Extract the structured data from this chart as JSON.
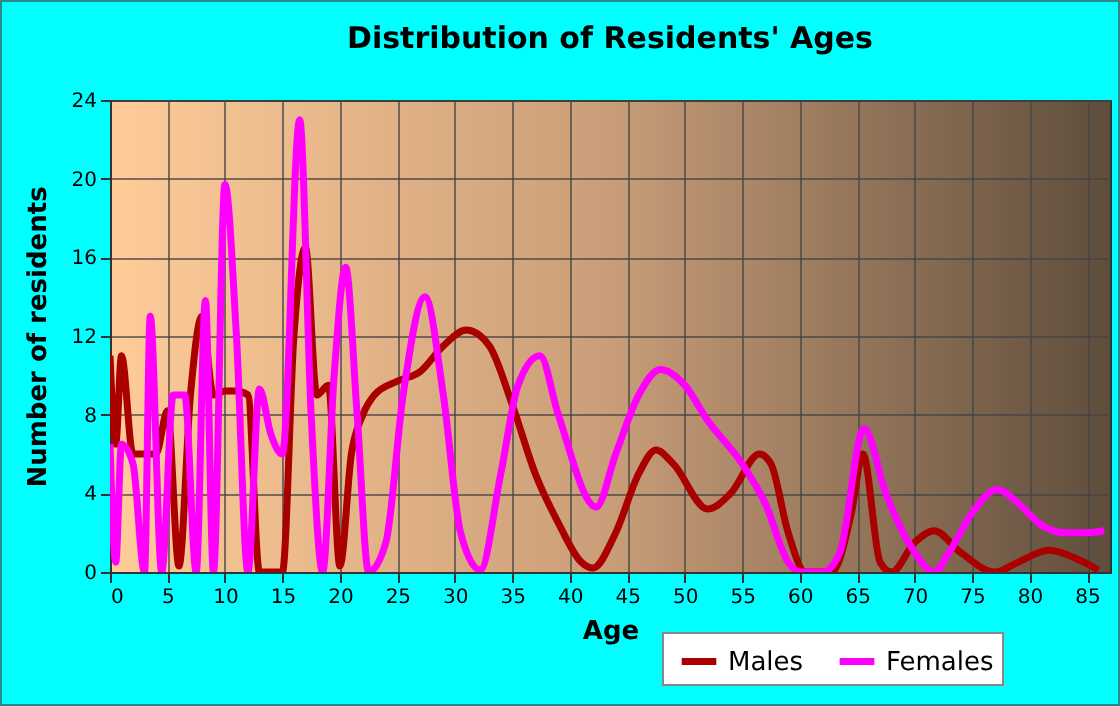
{
  "chart_data": {
    "type": "line",
    "title": "Distribution of Residents' Ages",
    "xlabel": "Age",
    "ylabel": "Number of residents",
    "xlim": [
      0,
      87
    ],
    "xticks": [
      0,
      5,
      10,
      15,
      20,
      25,
      30,
      35,
      40,
      45,
      50,
      55,
      60,
      65,
      70,
      75,
      80,
      85
    ],
    "ylim": [
      0,
      24
    ],
    "yticks": [
      0,
      4,
      8,
      12,
      16,
      20,
      24
    ],
    "grid": true,
    "legend": "bottom",
    "series": [
      {
        "name": "Males",
        "color": "#aa0000",
        "x": [
          0,
          0.5,
          1,
          2,
          3,
          4,
          5,
          6,
          7,
          8,
          9,
          10,
          11,
          12,
          13,
          14,
          15,
          16,
          17,
          18,
          19,
          20,
          21,
          22,
          23,
          25,
          27,
          29,
          31,
          33,
          35,
          37,
          39,
          41,
          42,
          44,
          46,
          47.5,
          49,
          52,
          54,
          56.5,
          57.5,
          59,
          60.5,
          62.8,
          64.5,
          65.5,
          67,
          68,
          70,
          71.7,
          74,
          77,
          79,
          81.7,
          84,
          86
        ],
        "values": [
          11,
          6.5,
          11,
          6,
          6,
          6,
          8.2,
          0.3,
          9,
          13,
          9,
          9.2,
          9.2,
          9,
          0,
          0,
          0,
          12,
          16.5,
          9,
          9.5,
          0.3,
          6,
          8,
          9,
          9.7,
          10.2,
          11.5,
          12.3,
          11.5,
          8.5,
          5,
          2.5,
          0.5,
          0.2,
          2,
          5,
          6.2,
          5.5,
          3.2,
          4,
          6,
          5.5,
          2,
          0,
          0,
          3,
          6,
          0.5,
          0,
          1.5,
          2.1,
          1,
          0,
          0.5,
          1.1,
          0.7,
          0.1
        ]
      },
      {
        "name": "Females",
        "color": "#ff00ff",
        "x": [
          0,
          0.5,
          1,
          2,
          3,
          3.5,
          4.5,
          5.5,
          6.5,
          7.5,
          8.3,
          9,
          10,
          11,
          12,
          13,
          14,
          15,
          16.5,
          17.5,
          18.5,
          19.5,
          20.5,
          21.5,
          22.5,
          24,
          25.5,
          27.4,
          29,
          30.5,
          32.2,
          34,
          35.5,
          37.4,
          39,
          42.3,
          44,
          46,
          47.9,
          50,
          52,
          55,
          57,
          59,
          60,
          62,
          63.5,
          65.6,
          67.5,
          70,
          71.7,
          73,
          75,
          77.2,
          79,
          81,
          83,
          85,
          86.5
        ],
        "values": [
          6.5,
          0.5,
          6.5,
          5.5,
          0,
          13,
          0,
          9,
          9,
          0,
          13.8,
          0,
          19.7,
          12,
          0,
          9.3,
          7,
          6,
          23,
          8,
          0,
          10,
          15.5,
          8,
          0,
          1.5,
          9,
          14,
          9,
          2,
          0.1,
          5,
          9.5,
          11,
          8,
          3.3,
          6,
          9,
          10.3,
          9.5,
          7.7,
          5.5,
          3.5,
          0.5,
          0,
          0,
          1,
          7.3,
          4,
          1,
          0,
          1,
          3,
          4.2,
          3.5,
          2.4,
          2,
          2,
          2.1
        ]
      }
    ]
  }
}
